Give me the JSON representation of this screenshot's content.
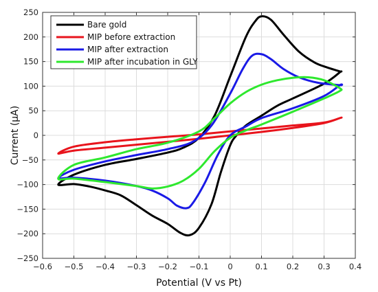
{
  "chart_data": {
    "type": "line",
    "xlabel": "Potential (V vs Pt)",
    "ylabel": "Current (μA)",
    "xlim": [
      -0.6,
      0.4
    ],
    "ylim": [
      -250,
      250
    ],
    "xticks": [
      -0.6,
      -0.5,
      -0.4,
      -0.3,
      -0.2,
      -0.1,
      0,
      0.1,
      0.2,
      0.3,
      0.4
    ],
    "yticks": [
      -250,
      -200,
      -150,
      -100,
      -50,
      0,
      50,
      100,
      150,
      200,
      250
    ],
    "xtick_labels": [
      "−0.6",
      "−0.5",
      "−0.4",
      "−0.3",
      "−0.2",
      "−0.1",
      "0",
      "0.1",
      "0.2",
      "0.3",
      "0.4"
    ],
    "ytick_labels": [
      "−250",
      "−200",
      "−150",
      "−100",
      "−50",
      "0",
      "50",
      "100",
      "150",
      "200",
      "250"
    ],
    "grid": true,
    "legend_position": "top-left",
    "series": [
      {
        "name": "Bare gold",
        "color": "#000000",
        "x": [
          -0.55,
          -0.5,
          -0.4,
          -0.3,
          -0.2,
          -0.15,
          -0.1,
          -0.05,
          0,
          0.05,
          0.08,
          0.1,
          0.13,
          0.17,
          0.22,
          0.27,
          0.31,
          0.35,
          0.35,
          0.3,
          0.2,
          0.15,
          0.1,
          0.05,
          0.02,
          0,
          -0.03,
          -0.06,
          -0.1,
          -0.13,
          -0.16,
          -0.2,
          -0.25,
          -0.3,
          -0.35,
          -0.4,
          -0.45,
          -0.5,
          -0.55
        ],
        "y": [
          -100,
          -80,
          -60,
          -48,
          -35,
          -25,
          -5,
          40,
          120,
          200,
          232,
          242,
          235,
          205,
          170,
          148,
          138,
          130,
          128,
          105,
          75,
          60,
          40,
          20,
          0,
          -20,
          -75,
          -140,
          -188,
          -203,
          -198,
          -180,
          -163,
          -142,
          -122,
          -112,
          -104,
          -99,
          -100
        ]
      },
      {
        "name": "MIP before extraction",
        "color": "#e8141c",
        "x": [
          -0.55,
          -0.5,
          -0.4,
          -0.3,
          -0.2,
          -0.1,
          0,
          0.1,
          0.2,
          0.3,
          0.35,
          0.35,
          0.3,
          0.2,
          0.1,
          0,
          -0.1,
          -0.2,
          -0.3,
          -0.4,
          -0.5,
          -0.55
        ],
        "y": [
          -37,
          -23,
          -14,
          -8,
          -3,
          2,
          8,
          14,
          20,
          26,
          35,
          35,
          25,
          15,
          7,
          0,
          -7,
          -13,
          -19,
          -25,
          -31,
          -37
        ]
      },
      {
        "name": "MIP after extraction",
        "color": "#1a1ae6",
        "x": [
          -0.55,
          -0.5,
          -0.4,
          -0.3,
          -0.2,
          -0.12,
          -0.06,
          0,
          0.04,
          0.07,
          0.1,
          0.13,
          0.17,
          0.22,
          0.28,
          0.35,
          0.35,
          0.3,
          0.2,
          0.1,
          0.05,
          0,
          -0.04,
          -0.08,
          -0.12,
          -0.14,
          -0.17,
          -0.2,
          -0.25,
          -0.3,
          -0.4,
          -0.5,
          -0.55
        ],
        "y": [
          -87,
          -70,
          -53,
          -40,
          -28,
          -13,
          20,
          85,
          135,
          162,
          165,
          155,
          135,
          118,
          107,
          102,
          102,
          80,
          55,
          35,
          18,
          0,
          -40,
          -95,
          -138,
          -148,
          -143,
          -128,
          -112,
          -103,
          -92,
          -86,
          -87
        ]
      },
      {
        "name": "MIP after incubation in GLY",
        "color": "#2ee82e",
        "x": [
          -0.55,
          -0.5,
          -0.4,
          -0.3,
          -0.2,
          -0.1,
          -0.05,
          0,
          0.05,
          0.1,
          0.15,
          0.2,
          0.25,
          0.3,
          0.35,
          0.35,
          0.3,
          0.2,
          0.1,
          0.05,
          0,
          -0.05,
          -0.1,
          -0.15,
          -0.2,
          -0.25,
          -0.3,
          -0.4,
          -0.5,
          -0.55
        ],
        "y": [
          -88,
          -60,
          -45,
          -28,
          -15,
          8,
          35,
          65,
          88,
          103,
          112,
          117,
          118,
          112,
          96,
          90,
          75,
          48,
          22,
          10,
          -5,
          -32,
          -68,
          -92,
          -104,
          -108,
          -103,
          -95,
          -88,
          -88
        ]
      }
    ]
  }
}
